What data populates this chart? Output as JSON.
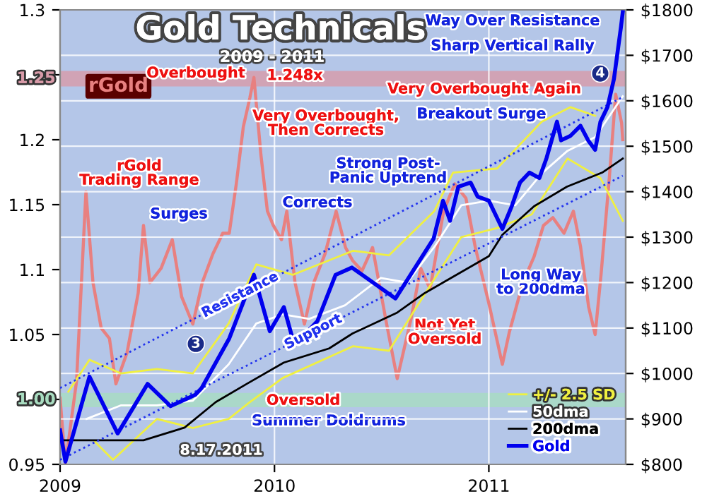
{
  "chart_data": {
    "type": "line",
    "title": "Gold Technicals",
    "subtitle": "2009 - 2011",
    "xlim": [
      "2009-01-01",
      "2011-08-22"
    ],
    "xticks": [
      "2009",
      "2010",
      "2011"
    ],
    "ylim": [
      0.95,
      1.3
    ],
    "yticks": [
      0.95,
      {
        "value": 1.0,
        "label": null
      },
      1.05,
      1.1,
      1.15,
      1.2,
      {
        "value": 1.25,
        "label": null
      },
      1.3
    ],
    "y2lim": [
      800,
      1800
    ],
    "y2ticks": [
      {
        "value": 800,
        "label": "$800"
      },
      {
        "value": 900,
        "label": "$900"
      },
      {
        "value": 1000,
        "label": "$1000"
      },
      {
        "value": 1100,
        "label": "$1100"
      },
      {
        "value": 1200,
        "label": "$1200"
      },
      {
        "value": 1300,
        "label": "$1300"
      },
      {
        "value": 1400,
        "label": "$1400"
      },
      {
        "value": 1500,
        "label": "$1500"
      },
      {
        "value": 1600,
        "label": "$1600"
      },
      {
        "value": 1700,
        "label": "$1700"
      },
      {
        "value": 1800,
        "label": "$1800"
      }
    ],
    "grid": true,
    "legend": "bottom right",
    "marker": "none",
    "bands": [
      {
        "axis": "y",
        "from": 1.241,
        "to": 1.253,
        "label": "1.25",
        "color": "#d89aa8"
      },
      {
        "axis": "y",
        "from": 0.994,
        "to": 1.005,
        "label": "1.00",
        "color": "#a8dcc0"
      }
    ],
    "series": [
      {
        "name": "rGold",
        "color": "#e88080",
        "axis": "y",
        "x": [
          "2009-01-01",
          "2009-01-10",
          "2009-01-29",
          "2009-02-14",
          "2009-02-26",
          "2009-03-12",
          "2009-03-26",
          "2009-04-06",
          "2009-04-25",
          "2009-05-14",
          "2009-05-23",
          "2009-06-03",
          "2009-06-22",
          "2009-07-11",
          "2009-07-27",
          "2009-08-15",
          "2009-08-31",
          "2009-09-18",
          "2009-10-05",
          "2009-10-16",
          "2009-10-28",
          "2009-11-09",
          "2009-11-20",
          "2009-11-27",
          "2009-12-09",
          "2009-12-20",
          "2009-12-30",
          "2010-01-13",
          "2010-01-22",
          "2010-02-05",
          "2010-02-21",
          "2010-03-09",
          "2010-03-28",
          "2010-04-16",
          "2010-05-02",
          "2010-05-14",
          "2010-05-30",
          "2010-06-17",
          "2010-07-11",
          "2010-07-29",
          "2010-08-22",
          "2010-09-07",
          "2010-09-23",
          "2010-10-16",
          "2010-11-04",
          "2010-11-23",
          "2010-12-09",
          "2011-01-01",
          "2011-01-24",
          "2011-02-05",
          "2011-02-28",
          "2011-03-19",
          "2011-04-04",
          "2011-04-20",
          "2011-05-09",
          "2011-05-25",
          "2011-06-06",
          "2011-06-20",
          "2011-07-01",
          "2011-07-11",
          "2011-07-25",
          "2011-08-05",
          "2011-08-15",
          "2011-08-17"
        ],
        "values": [
          1.001,
          0.95,
          1.014,
          1.16,
          1.09,
          1.055,
          1.047,
          1.012,
          1.036,
          1.082,
          1.134,
          1.09,
          1.101,
          1.123,
          1.079,
          1.058,
          1.09,
          1.112,
          1.128,
          1.128,
          1.166,
          1.21,
          1.232,
          1.248,
          1.188,
          1.145,
          1.134,
          1.123,
          1.145,
          1.09,
          1.058,
          1.09,
          1.112,
          1.145,
          1.117,
          1.107,
          1.099,
          1.117,
          1.058,
          1.016,
          1.063,
          1.101,
          1.085,
          1.145,
          1.166,
          1.155,
          1.117,
          1.074,
          1.027,
          1.052,
          1.09,
          1.11,
          1.134,
          1.14,
          1.128,
          1.145,
          1.118,
          1.071,
          1.05,
          1.096,
          1.17,
          1.235,
          1.213,
          1.2
        ]
      },
      {
        "name": "+/- 2.5 SD",
        "color": "#f0f040",
        "axis": "y2",
        "x": [
          "2009-01-15",
          "2009-02-20",
          "2009-04-15",
          "2009-06-15",
          "2009-08-15",
          "2009-10-15",
          "2009-12-01",
          "2010-02-01",
          "2010-05-15",
          "2010-07-15",
          "2010-09-30",
          "2010-11-01",
          "2011-01-15",
          "2011-04-01",
          "2011-05-20",
          "2011-07-01"
        ],
        "values": [
          960,
          1030,
          1000,
          1010,
          1000,
          1110,
          1240,
          1217,
          1270,
          1260,
          1357,
          1442,
          1451,
          1554,
          1586,
          1567
        ]
      },
      {
        "color": "#f0f040",
        "axis": "y2",
        "x": [
          "2009-03-01",
          "2009-04-01",
          "2009-06-15",
          "2009-08-15",
          "2009-10-15",
          "2009-11-20",
          "2010-01-15",
          "2010-05-15",
          "2010-07-15",
          "2010-09-15",
          "2010-11-15",
          "2011-01-15",
          "2011-03-15",
          "2011-05-15",
          "2011-07-10",
          "2011-08-17"
        ],
        "values": [
          850,
          810,
          900,
          880,
          900,
          937,
          990,
          1060,
          1050,
          1177,
          1300,
          1320,
          1350,
          1473,
          1430,
          1336
        ]
      },
      {
        "name": "50dma",
        "color": "#ffffff",
        "axis": "y2",
        "x": [
          "2009-02-15",
          "2009-04-15",
          "2009-06-15",
          "2009-08-15",
          "2009-10-15",
          "2009-12-01",
          "2010-01-15",
          "2010-03-01",
          "2010-05-01",
          "2010-07-01",
          "2010-08-15",
          "2010-10-01",
          "2010-11-15",
          "2011-01-01",
          "2011-02-15",
          "2011-04-01",
          "2011-05-15",
          "2011-07-01",
          "2011-08-17"
        ],
        "values": [
          900,
          930,
          930,
          940,
          1020,
          1110,
          1130,
          1120,
          1150,
          1210,
          1200,
          1280,
          1370,
          1380,
          1370,
          1440,
          1490,
          1520,
          1610
        ]
      },
      {
        "name": "200dma",
        "color": "#000000",
        "axis": "y2",
        "x": [
          "2009-01-03",
          "2009-05-23",
          "2009-08-01",
          "2009-09-23",
          "2009-11-16",
          "2010-01-17",
          "2010-04-04",
          "2010-05-14",
          "2010-07-29",
          "2010-09-14",
          "2011-01-01",
          "2011-01-24",
          "2011-03-19",
          "2011-05-14",
          "2011-07-13",
          "2011-08-17"
        ],
        "values": [
          853,
          853,
          881,
          937,
          978,
          1024,
          1055,
          1088,
          1134,
          1177,
          1258,
          1305,
          1368,
          1411,
          1442,
          1473
        ]
      },
      {
        "name": "Resistance",
        "color": "#2233ee",
        "axis": "y2",
        "line_style": "dotted",
        "x": [
          "2009-01-01",
          "2011-08-17"
        ],
        "values": [
          968,
          1608
        ]
      },
      {
        "name": "Support",
        "color": "#2233ee",
        "axis": "y2",
        "line_style": "dotted",
        "x": [
          "2009-01-01",
          "2011-08-17"
        ],
        "values": [
          810,
          1435
        ]
      },
      {
        "name": "Gold",
        "color": "#0000ee",
        "axis": "y2",
        "x": [
          "2009-01-01",
          "2009-01-10",
          "2009-02-20",
          "2009-04-09",
          "2009-05-30",
          "2009-07-08",
          "2009-08-19",
          "2009-08-30",
          "2009-10-16",
          "2009-11-27",
          "2009-12-24",
          "2010-01-17",
          "2010-02-04",
          "2010-03-15",
          "2010-04-15",
          "2010-05-13",
          "2010-07-26",
          "2010-09-29",
          "2010-10-15",
          "2010-10-27",
          "2010-11-10",
          "2010-12-01",
          "2010-12-13",
          "2011-01-01",
          "2011-01-24",
          "2011-02-09",
          "2011-02-23",
          "2011-03-11",
          "2011-03-28",
          "2011-04-09",
          "2011-04-27",
          "2011-05-04",
          "2011-05-20",
          "2011-06-06",
          "2011-06-19",
          "2011-07-01",
          "2011-07-10",
          "2011-07-22",
          "2011-08-02",
          "2011-08-14",
          "2011-08-17"
        ],
        "values": [
          875,
          806,
          993,
          868,
          977,
          928,
          953,
          968,
          1077,
          1217,
          1093,
          1146,
          1062,
          1115,
          1217,
          1233,
          1165,
          1297,
          1380,
          1336,
          1411,
          1420,
          1389,
          1380,
          1318,
          1368,
          1420,
          1442,
          1430,
          1473,
          1554,
          1513,
          1523,
          1545,
          1513,
          1492,
          1554,
          1586,
          1648,
          1763,
          1795
        ]
      }
    ],
    "annotations": [
      "Overbought",
      "1.248x",
      "Very Overbought,\nThen Corrects",
      "rGold\nTrading Range",
      "Surges",
      "Corrects",
      "Strong Post-\nPanic Uptrend",
      "Way Over Resistance",
      "Sharp Vertical Rally",
      "Very Overbought Again",
      "Breakout Surge",
      "Long Way\nto 200dma",
      "Not Yet\nOversold",
      "Oversold",
      "Summer Doldrums",
      "8.17.2011",
      "3",
      "4"
    ]
  }
}
